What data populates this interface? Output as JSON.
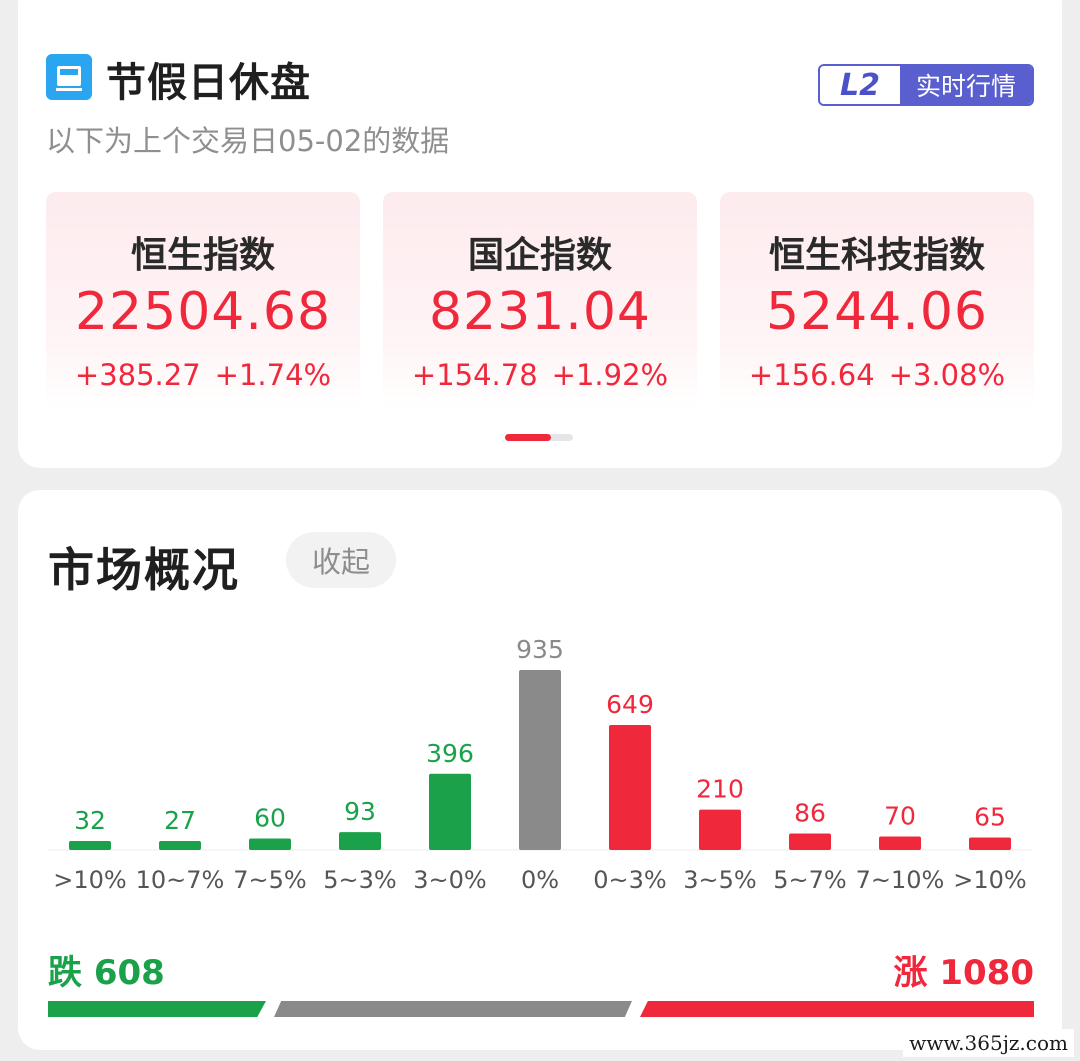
{
  "holiday": {
    "title": "节假日休盘",
    "subtitle": "以下为上个交易日05-02的数据",
    "badge": {
      "left": "L2",
      "right": "实时行情"
    },
    "indices": [
      {
        "name": "恒生指数",
        "value": "22504.68",
        "change": "+385.27",
        "pct": "+1.74%"
      },
      {
        "name": "国企指数",
        "value": "8231.04",
        "change": "+154.78",
        "pct": "+1.92%"
      },
      {
        "name": "恒生科技指数",
        "value": "5244.06",
        "change": "+156.64",
        "pct": "+3.08%"
      }
    ],
    "pager": {
      "pages": 2,
      "current": 1
    }
  },
  "market": {
    "title": "市场概况",
    "collapse_label": "收起",
    "down_label": "跌 608",
    "up_label": "涨 1080",
    "down_total": 608,
    "flat_total": 935,
    "up_total": 1080
  },
  "chart_data": {
    "type": "bar",
    "categories": [
      ">10%",
      "10~7%",
      "7~5%",
      "5~3%",
      "3~0%",
      "0%",
      "0~3%",
      "3~5%",
      "5~7%",
      "7~10%",
      ">10%"
    ],
    "values": [
      32,
      27,
      60,
      93,
      396,
      935,
      649,
      210,
      86,
      70,
      65
    ],
    "bar_groups": [
      "down",
      "down",
      "down",
      "down",
      "down",
      "flat",
      "up",
      "up",
      "up",
      "up",
      "up"
    ],
    "colors": {
      "down": "#1aa14a",
      "flat": "#8a8a8a",
      "up": "#f0283c",
      "tick": "#555555"
    },
    "grid": false
  },
  "colors": {
    "accent_red": "#f0283c",
    "accent_green": "#1aa14a",
    "badge_blue": "#5a5fd0",
    "icon_blue": "#2aa5f0"
  },
  "watermark": "www.365jz.com"
}
